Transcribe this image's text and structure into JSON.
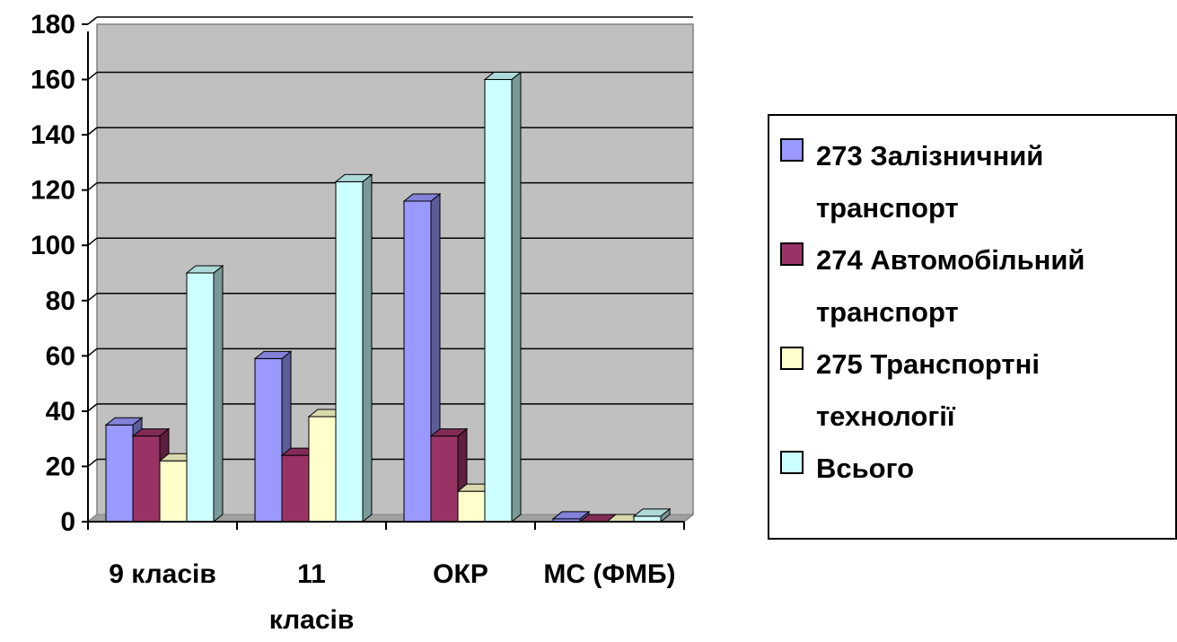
{
  "chart_data": {
    "type": "bar",
    "style": "3d-clustered-column",
    "title": "",
    "xlabel": "",
    "ylabel": "",
    "categories": [
      "9 класів",
      "11 класів",
      "ОКР",
      "МС (ФМБ)"
    ],
    "series": [
      {
        "name": "273 Залізничний транспорт",
        "color": "#9999ff",
        "values": [
          35,
          59,
          116,
          1
        ]
      },
      {
        "name": "274 Автомобільний транспорт",
        "color": "#993366",
        "values": [
          31,
          24,
          31,
          0
        ]
      },
      {
        "name": "275 Транспортні технології",
        "color": "#ffffcc",
        "values": [
          22,
          38,
          11,
          0
        ]
      },
      {
        "name": "Всього",
        "color": "#ccffff",
        "values": [
          90,
          123,
          160,
          2
        ]
      }
    ],
    "ylim": [
      0,
      180
    ],
    "yticks": [
      "0",
      "20",
      "40",
      "60",
      "80",
      "100",
      "120",
      "140",
      "160",
      "180"
    ],
    "grid": true,
    "plot_background": "#c0c0c0",
    "legend_position": "right"
  }
}
